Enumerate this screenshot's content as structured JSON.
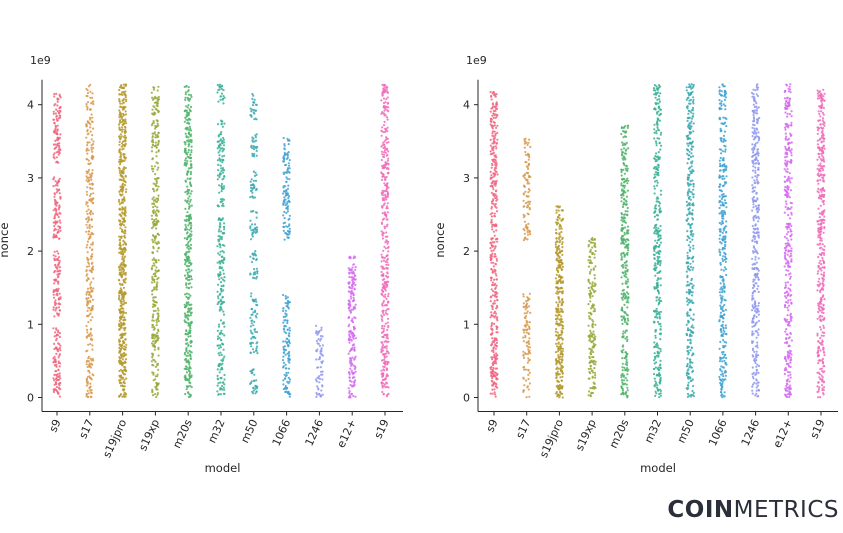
{
  "logo": {
    "bold_text": "COIN",
    "light_text": "METRICS"
  },
  "chart_data": [
    {
      "type": "scatter",
      "subtype": "strip",
      "xlabel": "model",
      "ylabel": "nonce",
      "y_scale_label": "1e9",
      "ylim": [
        0,
        4.3
      ],
      "yticks": [
        0,
        1,
        2,
        3,
        4
      ],
      "categories": [
        "s9",
        "s17",
        "s19jpro",
        "s19xp",
        "m20s",
        "m32",
        "m50",
        "1066",
        "1246",
        "e12+",
        "s19"
      ],
      "colors": [
        "#f0667f",
        "#d89a4e",
        "#b59a2e",
        "#99a83a",
        "#4fb36a",
        "#39b096",
        "#3ba9b0",
        "#3fa2d2",
        "#8f98ef",
        "#d56bf0",
        "#f06cba"
      ],
      "density": [
        0.7,
        0.55,
        1.0,
        0.6,
        0.7,
        0.55,
        0.5,
        0.6,
        0.5,
        0.75,
        0.7
      ],
      "ranges": [
        [
          [
            0.0,
            0.95
          ],
          [
            1.1,
            2.0
          ],
          [
            2.15,
            3.05
          ],
          [
            3.2,
            4.15
          ]
        ],
        [
          [
            0.0,
            4.28
          ]
        ],
        [
          [
            0.0,
            4.28
          ]
        ],
        [
          [
            0.0,
            4.28
          ]
        ],
        [
          [
            0.0,
            4.28
          ]
        ],
        [
          [
            0.0,
            2.45
          ],
          [
            2.6,
            3.8
          ],
          [
            4.0,
            4.28
          ]
        ],
        [
          [
            0.0,
            0.4
          ],
          [
            0.6,
            1.45
          ],
          [
            1.6,
            2.0
          ],
          [
            2.15,
            2.55
          ],
          [
            2.7,
            3.1
          ],
          [
            3.25,
            3.6
          ],
          [
            3.8,
            4.15
          ]
        ],
        [
          [
            0.0,
            1.42
          ],
          [
            2.15,
            3.55
          ]
        ],
        [
          [
            0.0,
            0.98
          ]
        ],
        [
          [
            0.0,
            1.93
          ]
        ],
        [
          [
            0.0,
            4.28
          ]
        ]
      ]
    },
    {
      "type": "scatter",
      "subtype": "strip",
      "xlabel": "model",
      "ylabel": "nonce",
      "y_scale_label": "1e9",
      "ylim": [
        0,
        4.3
      ],
      "yticks": [
        0,
        1,
        2,
        3,
        4
      ],
      "categories": [
        "s9",
        "s17",
        "s19jpro",
        "s19xp",
        "m20s",
        "m32",
        "m50",
        "1066",
        "1246",
        "e12+",
        "s19"
      ],
      "colors": [
        "#f0667f",
        "#d89a4e",
        "#b59a2e",
        "#99a83a",
        "#4fb36a",
        "#39b096",
        "#3ba9b0",
        "#3fa2d2",
        "#8f98ef",
        "#d56bf0",
        "#f06cba"
      ],
      "density": [
        0.7,
        0.5,
        0.95,
        0.6,
        0.65,
        0.6,
        0.6,
        0.6,
        0.6,
        0.6,
        0.7
      ],
      "ranges": [
        [
          [
            0.0,
            4.2
          ]
        ],
        [
          [
            0.0,
            1.42
          ],
          [
            2.15,
            3.55
          ]
        ],
        [
          [
            0.0,
            2.62
          ]
        ],
        [
          [
            0.0,
            2.18
          ]
        ],
        [
          [
            0.0,
            3.73
          ]
        ],
        [
          [
            0.0,
            4.28
          ]
        ],
        [
          [
            0.0,
            4.28
          ]
        ],
        [
          [
            0.0,
            4.28
          ]
        ],
        [
          [
            0.0,
            4.28
          ]
        ],
        [
          [
            0.0,
            4.28
          ]
        ],
        [
          [
            0.0,
            4.22
          ]
        ]
      ]
    }
  ]
}
